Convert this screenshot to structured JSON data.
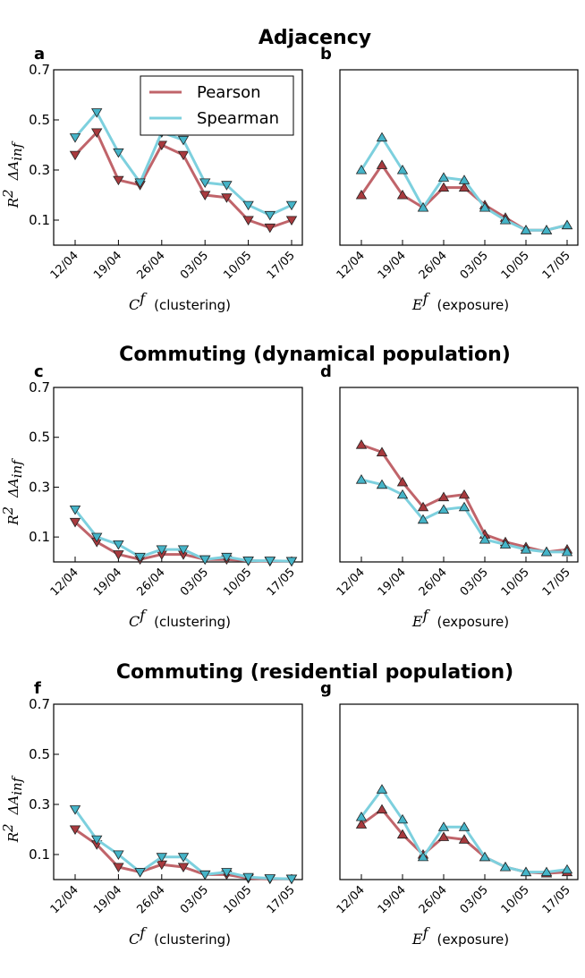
{
  "colors": {
    "pearson": "#c0646a",
    "pearson_marker": "#a83a3e",
    "spearman": "#7dd0de",
    "spearman_marker": "#45b4c8"
  },
  "section_titles": [
    "Adjacency",
    "Commuting (dynamical population)",
    "Commuting (residential population)"
  ],
  "legend": {
    "pearson": "Pearson",
    "spearman": "Spearman"
  },
  "ylabel": {
    "r2": "R",
    "r2_sup": "2",
    "delta": "ΔA",
    "delta_sub": "inf"
  },
  "xlabels": {
    "clustering_sym": "C",
    "clustering_sup": "f",
    "clustering_txt": "(clustering)",
    "exposure_sym": "E",
    "exposure_sup": "f",
    "exposure_txt": "(exposure)"
  },
  "chart_data": [
    {
      "panel": "a",
      "type": "line",
      "section": "Adjacency",
      "xlabel": "C^f (clustering)",
      "x": [
        "12/04",
        "16/04",
        "19/04",
        "23/04",
        "26/04",
        "30/04",
        "03/05",
        "07/05",
        "10/05",
        "14/05",
        "17/05"
      ],
      "xticks": [
        "12/04",
        "19/04",
        "26/04",
        "03/05",
        "10/05",
        "17/05"
      ],
      "yticks": [
        "0.1",
        "0.3",
        "0.5",
        "0.7"
      ],
      "ylim": [
        0,
        0.7
      ],
      "marker": "down",
      "series": [
        {
          "name": "Pearson",
          "values": [
            0.36,
            0.45,
            0.26,
            0.24,
            0.4,
            0.36,
            0.2,
            0.19,
            0.1,
            0.07,
            0.1
          ]
        },
        {
          "name": "Spearman",
          "values": [
            0.43,
            0.53,
            0.37,
            0.25,
            0.45,
            0.42,
            0.25,
            0.24,
            0.16,
            0.12,
            0.16
          ]
        }
      ],
      "legend": "top-right"
    },
    {
      "panel": "b",
      "type": "line",
      "section": "Adjacency",
      "xlabel": "E^f (exposure)",
      "x": [
        "12/04",
        "16/04",
        "19/04",
        "23/04",
        "26/04",
        "30/04",
        "03/05",
        "07/05",
        "10/05",
        "14/05",
        "17/05"
      ],
      "xticks": [
        "12/04",
        "19/04",
        "26/04",
        "03/05",
        "10/05",
        "17/05"
      ],
      "yticks": [],
      "ylim": [
        0,
        0.7
      ],
      "marker": "up",
      "series": [
        {
          "name": "Pearson",
          "values": [
            0.2,
            0.32,
            0.2,
            0.15,
            0.23,
            0.23,
            0.16,
            0.11,
            0.06,
            0.06,
            0.08
          ]
        },
        {
          "name": "Spearman",
          "values": [
            0.3,
            0.43,
            0.3,
            0.15,
            0.27,
            0.26,
            0.15,
            0.1,
            0.06,
            0.06,
            0.08
          ]
        }
      ]
    },
    {
      "panel": "c",
      "type": "line",
      "section": "Commuting (dynamical population)",
      "xlabel": "C^f (clustering)",
      "x": [
        "12/04",
        "16/04",
        "19/04",
        "23/04",
        "26/04",
        "30/04",
        "03/05",
        "07/05",
        "10/05",
        "14/05",
        "17/05"
      ],
      "xticks": [
        "12/04",
        "19/04",
        "26/04",
        "03/05",
        "10/05",
        "17/05"
      ],
      "yticks": [
        "0.1",
        "0.3",
        "0.5",
        "0.7"
      ],
      "ylim": [
        0,
        0.7
      ],
      "marker": "down",
      "series": [
        {
          "name": "Pearson",
          "values": [
            0.16,
            0.08,
            0.03,
            0.01,
            0.03,
            0.03,
            0.01,
            0.01,
            0.005,
            0.003,
            0.003
          ]
        },
        {
          "name": "Spearman",
          "values": [
            0.21,
            0.1,
            0.07,
            0.02,
            0.05,
            0.05,
            0.01,
            0.02,
            0.005,
            0.005,
            0.003
          ]
        }
      ]
    },
    {
      "panel": "d",
      "type": "line",
      "section": "Commuting (dynamical population)",
      "xlabel": "E^f (exposure)",
      "x": [
        "12/04",
        "16/04",
        "19/04",
        "23/04",
        "26/04",
        "30/04",
        "03/05",
        "07/05",
        "10/05",
        "14/05",
        "17/05"
      ],
      "xticks": [
        "12/04",
        "19/04",
        "26/04",
        "03/05",
        "10/05",
        "17/05"
      ],
      "yticks": [],
      "ylim": [
        0,
        0.7
      ],
      "marker": "up",
      "series": [
        {
          "name": "Pearson",
          "values": [
            0.47,
            0.44,
            0.32,
            0.22,
            0.26,
            0.27,
            0.11,
            0.08,
            0.06,
            0.04,
            0.05
          ]
        },
        {
          "name": "Spearman",
          "values": [
            0.33,
            0.31,
            0.27,
            0.17,
            0.21,
            0.22,
            0.09,
            0.07,
            0.05,
            0.04,
            0.04
          ]
        }
      ]
    },
    {
      "panel": "f",
      "type": "line",
      "section": "Commuting (residential population)",
      "xlabel": "C^f (clustering)",
      "x": [
        "12/04",
        "16/04",
        "19/04",
        "23/04",
        "26/04",
        "30/04",
        "03/05",
        "07/05",
        "10/05",
        "14/05",
        "17/05"
      ],
      "xticks": [
        "12/04",
        "19/04",
        "26/04",
        "03/05",
        "10/05",
        "17/05"
      ],
      "yticks": [
        "0.1",
        "0.3",
        "0.5",
        "0.7"
      ],
      "ylim": [
        0,
        0.7
      ],
      "marker": "down",
      "series": [
        {
          "name": "Pearson",
          "values": [
            0.2,
            0.14,
            0.05,
            0.03,
            0.06,
            0.05,
            0.02,
            0.02,
            0.005,
            0.003,
            0.003
          ]
        },
        {
          "name": "Spearman",
          "values": [
            0.28,
            0.16,
            0.1,
            0.03,
            0.09,
            0.09,
            0.02,
            0.03,
            0.01,
            0.005,
            0.003
          ]
        }
      ]
    },
    {
      "panel": "g",
      "type": "line",
      "section": "Commuting (residential population)",
      "xlabel": "E^f (exposure)",
      "x": [
        "12/04",
        "16/04",
        "19/04",
        "23/04",
        "26/04",
        "30/04",
        "03/05",
        "07/05",
        "10/05",
        "14/05",
        "17/05"
      ],
      "xticks": [
        "12/04",
        "19/04",
        "26/04",
        "03/05",
        "10/05",
        "17/05"
      ],
      "yticks": [],
      "ylim": [
        0,
        0.7
      ],
      "marker": "up",
      "series": [
        {
          "name": "Pearson",
          "values": [
            0.22,
            0.28,
            0.18,
            0.1,
            0.17,
            0.16,
            0.09,
            0.05,
            0.03,
            0.025,
            0.03
          ]
        },
        {
          "name": "Spearman",
          "values": [
            0.25,
            0.36,
            0.24,
            0.09,
            0.21,
            0.21,
            0.09,
            0.05,
            0.03,
            0.03,
            0.04
          ]
        }
      ]
    }
  ]
}
